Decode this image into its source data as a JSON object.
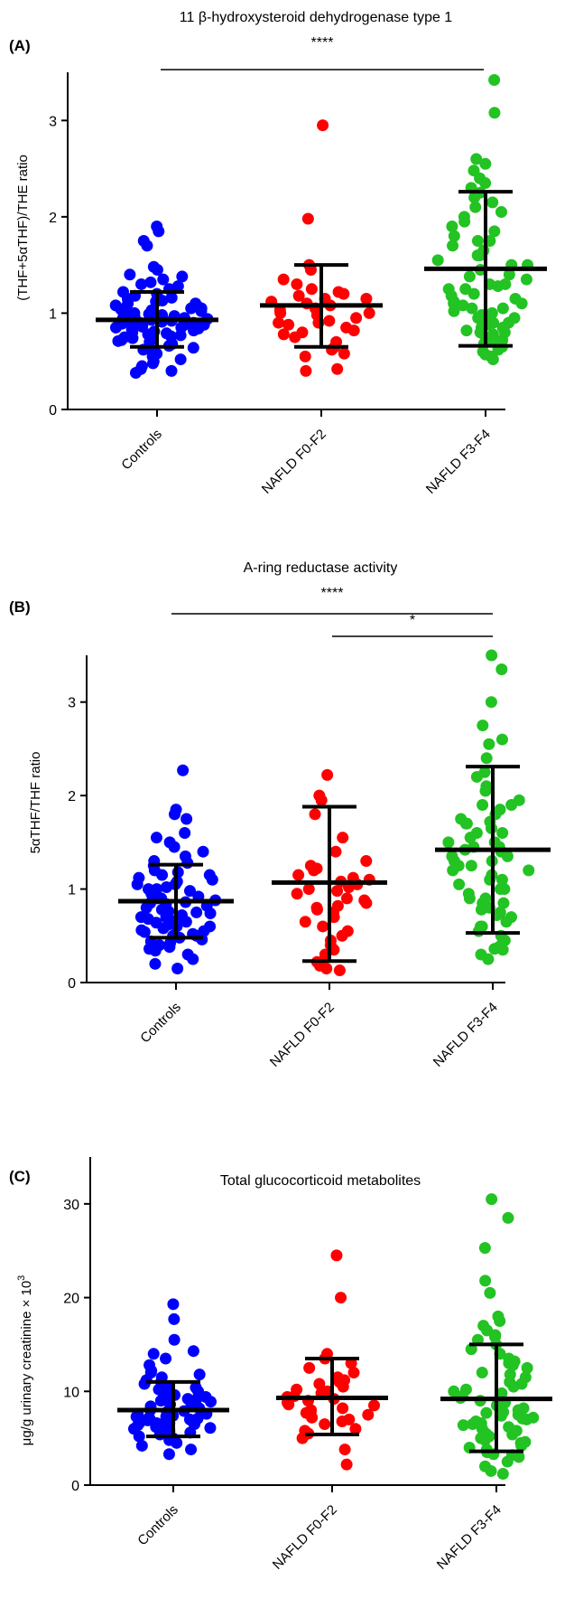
{
  "figure": {
    "panels": [
      {
        "letter": "(A)",
        "title": "11 β-hydroxysteroid dehydrogenase type 1",
        "ylabel": "(THF+5αTHF)/THE ratio"
      },
      {
        "letter": "(B)",
        "title": "A-ring reductase activity",
        "ylabel": "5αTHF/THF ratio"
      },
      {
        "letter": "(C)",
        "title": "Total glucocorticoid metabolites",
        "ylabel": "μg/g urinary creatinine × 10",
        "ylabel_sup": "3"
      }
    ]
  },
  "chart_data": [
    {
      "type": "scatter",
      "title": "11 β-hydroxysteroid dehydrogenase type 1",
      "ylabel": "(THF+5αTHF)/THE ratio",
      "ylim": [
        0,
        3.5
      ],
      "yticks": [
        0,
        1,
        2,
        3
      ],
      "categories": [
        "Controls",
        "NAFLD F0-F2",
        "NAFLD F3-F4"
      ],
      "colors": [
        "#0000ff",
        "#ff0000",
        "#22c322"
      ],
      "series": [
        {
          "name": "Controls",
          "mean": 0.93,
          "sd_low": 0.65,
          "sd_high": 1.22,
          "values": [
            1.9,
            1.85,
            1.75,
            1.7,
            1.48,
            1.45,
            1.4,
            1.38,
            1.35,
            1.32,
            1.3,
            1.28,
            1.25,
            1.22,
            1.2,
            1.18,
            1.16,
            1.15,
            1.13,
            1.12,
            1.1,
            1.08,
            1.07,
            1.05,
            1.04,
            1.03,
            1.02,
            1.0,
            0.99,
            0.98,
            0.97,
            0.96,
            0.95,
            0.94,
            0.93,
            0.92,
            0.91,
            0.9,
            0.89,
            0.88,
            0.87,
            0.86,
            0.85,
            0.84,
            0.83,
            0.82,
            0.81,
            0.8,
            0.79,
            0.78,
            0.77,
            0.76,
            0.75,
            0.74,
            0.73,
            0.72,
            0.71,
            0.7,
            0.68,
            0.66,
            0.64,
            0.62,
            0.6,
            0.58,
            0.55,
            0.52,
            0.5,
            0.48,
            0.45,
            0.42,
            0.4,
            0.38,
            1.0,
            0.95,
            0.9,
            0.88,
            1.1,
            1.05,
            0.85,
            0.92
          ]
        },
        {
          "name": "NAFLD F0-F2",
          "mean": 1.08,
          "sd_low": 0.65,
          "sd_high": 1.5,
          "values": [
            2.95,
            1.98,
            1.5,
            1.45,
            1.3,
            1.25,
            1.22,
            1.2,
            1.18,
            1.15,
            1.12,
            1.1,
            1.08,
            1.05,
            1.03,
            1.0,
            0.98,
            0.95,
            0.92,
            0.9,
            0.88,
            0.85,
            0.82,
            0.8,
            0.78,
            0.75,
            0.7,
            0.65,
            0.62,
            0.58,
            0.55,
            0.42,
            0.4,
            1.35,
            1.0,
            0.9,
            1.15
          ]
        },
        {
          "name": "NAFLD F3-F4",
          "mean": 1.46,
          "sd_low": 0.66,
          "sd_high": 2.26,
          "values": [
            3.42,
            3.08,
            2.6,
            2.55,
            2.48,
            2.4,
            2.35,
            2.3,
            2.25,
            2.2,
            2.1,
            2.05,
            2.0,
            1.95,
            1.9,
            1.85,
            1.8,
            1.75,
            1.7,
            1.65,
            1.6,
            1.55,
            1.5,
            1.45,
            1.4,
            1.38,
            1.35,
            1.3,
            1.28,
            1.25,
            1.2,
            1.18,
            1.15,
            1.12,
            1.1,
            1.08,
            1.05,
            1.02,
            1.0,
            0.98,
            0.95,
            0.92,
            0.9,
            0.88,
            0.85,
            0.82,
            0.8,
            0.78,
            0.75,
            0.72,
            0.7,
            0.68,
            0.65,
            0.62,
            0.6,
            0.57,
            0.55,
            0.52,
            1.5,
            1.3,
            1.1,
            0.9,
            0.85,
            1.6,
            1.25,
            0.95,
            1.75,
            2.15,
            0.8,
            1.05
          ]
        }
      ],
      "significance": [
        {
          "from": "Controls",
          "to": "NAFLD F3-F4",
          "label": "****"
        }
      ]
    },
    {
      "type": "scatter",
      "title": "A-ring reductase activity",
      "ylabel": "5αTHF/THF ratio",
      "ylim": [
        0,
        3.5
      ],
      "yticks": [
        0,
        1,
        2,
        3
      ],
      "categories": [
        "Controls",
        "NAFLD F0-F2",
        "NAFLD F3-F4"
      ],
      "colors": [
        "#0000ff",
        "#ff0000",
        "#22c322"
      ],
      "series": [
        {
          "name": "Controls",
          "mean": 0.87,
          "sd_low": 0.48,
          "sd_high": 1.26,
          "values": [
            2.27,
            1.85,
            1.8,
            1.75,
            1.6,
            1.55,
            1.5,
            1.45,
            1.4,
            1.35,
            1.3,
            1.28,
            1.25,
            1.2,
            1.18,
            1.15,
            1.12,
            1.1,
            1.08,
            1.05,
            1.02,
            1.0,
            0.98,
            0.95,
            0.92,
            0.9,
            0.88,
            0.86,
            0.84,
            0.82,
            0.8,
            0.78,
            0.76,
            0.74,
            0.72,
            0.7,
            0.68,
            0.66,
            0.64,
            0.62,
            0.6,
            0.58,
            0.56,
            0.54,
            0.52,
            0.5,
            0.48,
            0.46,
            0.44,
            0.42,
            0.4,
            0.38,
            0.36,
            0.34,
            0.3,
            0.25,
            0.2,
            0.15,
            1.0,
            0.9,
            0.85,
            0.75,
            1.05,
            0.95,
            0.65,
            0.55,
            1.15,
            0.7,
            0.6,
            0.5
          ]
        },
        {
          "name": "NAFLD F0-F2",
          "mean": 1.07,
          "sd_low": 0.23,
          "sd_high": 1.88,
          "values": [
            2.22,
            2.0,
            1.95,
            1.8,
            1.55,
            1.4,
            1.3,
            1.25,
            1.22,
            1.2,
            1.15,
            1.1,
            1.08,
            1.05,
            1.02,
            1.0,
            0.98,
            0.95,
            0.9,
            0.85,
            0.82,
            0.8,
            0.78,
            0.75,
            0.7,
            0.65,
            0.6,
            0.55,
            0.5,
            0.45,
            0.4,
            0.35,
            0.3,
            0.22,
            0.18,
            0.15,
            0.13,
            1.12,
            0.88
          ]
        },
        {
          "name": "NAFLD F3-F4",
          "mean": 1.42,
          "sd_low": 0.53,
          "sd_high": 2.31,
          "values": [
            3.5,
            3.35,
            3.0,
            2.75,
            2.6,
            2.55,
            2.4,
            2.25,
            2.2,
            2.1,
            2.05,
            1.95,
            1.9,
            1.85,
            1.8,
            1.75,
            1.72,
            1.7,
            1.65,
            1.6,
            1.55,
            1.5,
            1.45,
            1.42,
            1.4,
            1.35,
            1.3,
            1.25,
            1.2,
            1.15,
            1.1,
            1.05,
            1.0,
            0.95,
            0.9,
            0.85,
            0.8,
            0.75,
            0.7,
            0.65,
            0.6,
            0.55,
            0.5,
            0.45,
            0.4,
            0.38,
            0.36,
            0.35,
            0.3,
            0.25,
            1.6,
            1.3,
            1.1,
            0.9,
            1.45,
            1.2,
            0.72,
            1.7,
            1.0,
            0.85,
            1.5,
            1.25,
            0.6,
            1.9,
            1.35,
            0.78
          ]
        }
      ],
      "significance": [
        {
          "from": "Controls",
          "to": "NAFLD F3-F4",
          "label": "****"
        },
        {
          "from": "NAFLD F0-F2",
          "to": "NAFLD F3-F4",
          "label": "*"
        }
      ]
    },
    {
      "type": "scatter",
      "title": "Total glucocorticoid metabolites",
      "ylabel": "μg/g urinary creatinine × 10^3",
      "ylim": [
        0,
        35
      ],
      "yticks": [
        0,
        10,
        20,
        30
      ],
      "categories": [
        "Controls",
        "NAFLD F0-F2",
        "NAFLD F3-F4"
      ],
      "colors": [
        "#0000ff",
        "#ff0000",
        "#22c322"
      ],
      "series": [
        {
          "name": "Controls",
          "mean": 8.0,
          "sd_low": 5.2,
          "sd_high": 11.0,
          "values": [
            19.3,
            17.7,
            15.5,
            14.3,
            14.0,
            13.5,
            12.8,
            12.2,
            12.0,
            11.5,
            11.2,
            11.0,
            10.8,
            10.5,
            10.2,
            10.0,
            9.8,
            9.6,
            9.4,
            9.2,
            9.0,
            8.8,
            8.6,
            8.4,
            8.2,
            8.0,
            7.9,
            7.8,
            7.7,
            7.6,
            7.5,
            7.4,
            7.3,
            7.2,
            7.1,
            7.0,
            6.9,
            6.8,
            6.7,
            6.6,
            6.5,
            6.4,
            6.3,
            6.2,
            6.0,
            5.8,
            5.6,
            5.4,
            5.2,
            5.0,
            4.8,
            4.5,
            4.2,
            3.8,
            3.3,
            8.5,
            9.1,
            7.3,
            6.1,
            10.4,
            8.9,
            7.0,
            6.6,
            9.5,
            11.8
          ]
        },
        {
          "name": "NAFLD F0-F2",
          "mean": 9.3,
          "sd_low": 5.4,
          "sd_high": 13.5,
          "values": [
            24.5,
            20.0,
            14.0,
            13.5,
            13.0,
            12.5,
            12.0,
            11.5,
            11.0,
            10.8,
            10.5,
            10.2,
            10.0,
            9.8,
            9.5,
            9.2,
            9.0,
            8.8,
            8.5,
            8.2,
            8.0,
            7.8,
            7.5,
            7.2,
            7.0,
            6.8,
            6.5,
            6.0,
            5.8,
            5.5,
            5.0,
            3.8,
            2.2,
            11.2,
            8.6,
            9.4,
            7.7
          ]
        },
        {
          "name": "NAFLD F3-F4",
          "mean": 9.2,
          "sd_low": 3.6,
          "sd_high": 15.0,
          "values": [
            30.5,
            28.5,
            25.3,
            21.8,
            20.5,
            18.0,
            17.5,
            17.0,
            16.5,
            16.0,
            15.5,
            15.0,
            14.5,
            14.0,
            13.5,
            13.0,
            12.5,
            12.0,
            11.5,
            11.0,
            10.5,
            10.0,
            9.5,
            9.0,
            8.5,
            8.0,
            7.8,
            7.5,
            7.2,
            7.0,
            6.8,
            6.5,
            6.2,
            6.0,
            5.8,
            5.5,
            5.2,
            5.0,
            4.8,
            4.5,
            4.2,
            4.0,
            3.8,
            3.5,
            3.2,
            3.0,
            2.5,
            2.0,
            1.5,
            1.2,
            9.8,
            8.2,
            7.4,
            6.6,
            10.8,
            12.8,
            7.1,
            5.4,
            11.8,
            8.8,
            6.4,
            13.2,
            4.6,
            9.3,
            15.8,
            3.3,
            7.7,
            10.2
          ]
        }
      ],
      "significance": []
    }
  ]
}
